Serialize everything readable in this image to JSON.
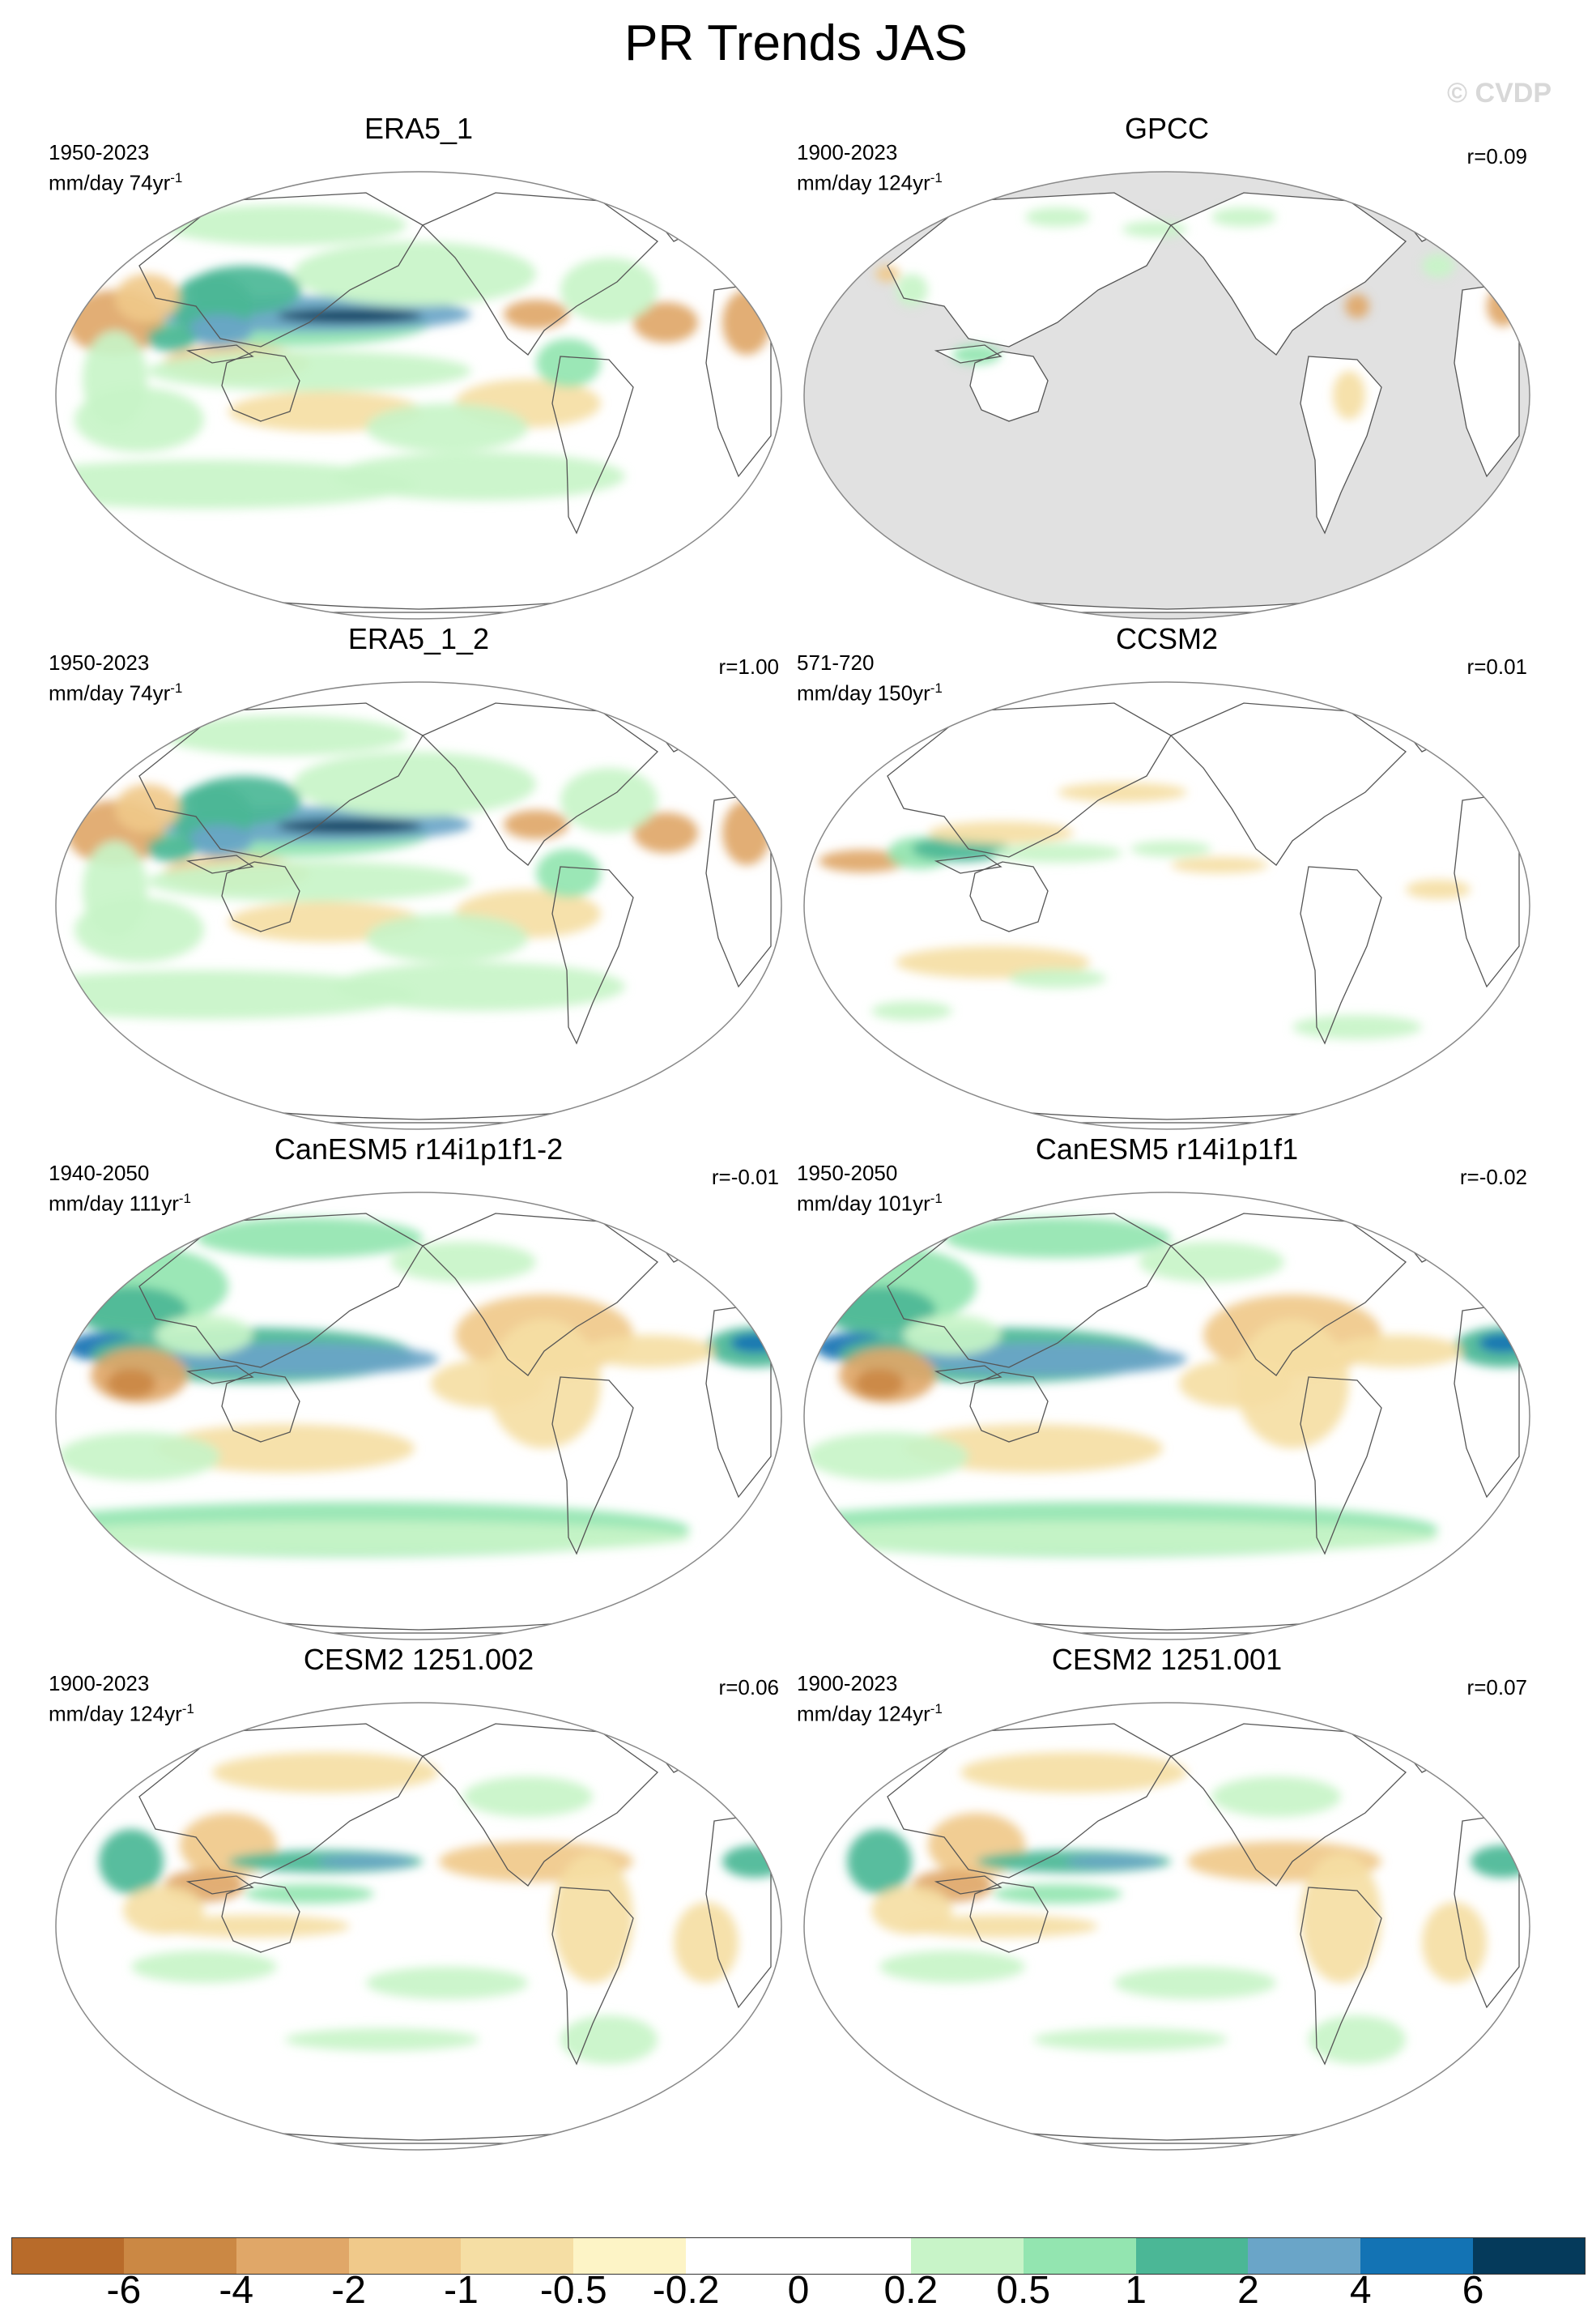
{
  "title": "PR Trends JAS",
  "watermark": "© CVDP",
  "panels": [
    {
      "title": "ERA5_1",
      "period": "1950-2023",
      "units": "mm/day 74yr",
      "units_exp": "-1",
      "r": "",
      "masked": false,
      "pattern": "era5"
    },
    {
      "title": "GPCC",
      "period": "1900-2023",
      "units": "mm/day 124yr",
      "units_exp": "-1",
      "r": "r=0.09",
      "masked": true,
      "pattern": "gpcc"
    },
    {
      "title": "ERA5_1_2",
      "period": "1950-2023",
      "units": "mm/day 74yr",
      "units_exp": "-1",
      "r": "r=1.00",
      "masked": false,
      "pattern": "era5"
    },
    {
      "title": "CCSM2",
      "period": "571-720",
      "units": "mm/day 150yr",
      "units_exp": "-1",
      "r": "r=0.01",
      "masked": false,
      "pattern": "ccsm"
    },
    {
      "title": "CanESM5 r14i1p1f1-2",
      "period": "1940-2050",
      "units": "mm/day 111yr",
      "units_exp": "-1",
      "r": "r=-0.01",
      "masked": false,
      "pattern": "canesm"
    },
    {
      "title": "CanESM5 r14i1p1f1",
      "period": "1950-2050",
      "units": "mm/day 101yr",
      "units_exp": "-1",
      "r": "r=-0.02",
      "masked": false,
      "pattern": "canesm"
    },
    {
      "title": "CESM2 1251.002",
      "period": "1900-2023",
      "units": "mm/day 124yr",
      "units_exp": "-1",
      "r": "r=0.06",
      "masked": false,
      "pattern": "cesm"
    },
    {
      "title": "CESM2 1251.001",
      "period": "1900-2023",
      "units": "mm/day 124yr",
      "units_exp": "-1",
      "r": "r=0.07",
      "masked": false,
      "pattern": "cesm"
    }
  ],
  "colorbar": {
    "levels": [
      "-6",
      "-4",
      "-2",
      "-1",
      "-0.5",
      "-0.2",
      "0",
      "0.2",
      "0.5",
      "1",
      "2",
      "4",
      "6"
    ],
    "colors": [
      "#b86b2a",
      "#cb8844",
      "#e0a768",
      "#f0c98a",
      "#f5dea4",
      "#fdf4c6",
      "#ffffff",
      "#ffffff",
      "#c8f4c8",
      "#93e5b0",
      "#4bb796",
      "#6aa5c8",
      "#1373b4",
      "#053a5b"
    ]
  },
  "chart_data": [
    {
      "type": "heatmap",
      "title": "ERA5_1",
      "period": "1950-2023",
      "units": "mm/day 74yr-1",
      "r": null
    },
    {
      "type": "heatmap",
      "title": "GPCC",
      "period": "1900-2023",
      "units": "mm/day 124yr-1",
      "r": 0.09
    },
    {
      "type": "heatmap",
      "title": "ERA5_1_2",
      "period": "1950-2023",
      "units": "mm/day 74yr-1",
      "r": 1.0
    },
    {
      "type": "heatmap",
      "title": "CCSM2",
      "period": "571-720",
      "units": "mm/day 150yr-1",
      "r": 0.01
    },
    {
      "type": "heatmap",
      "title": "CanESM5 r14i1p1f1-2",
      "period": "1940-2050",
      "units": "mm/day 111yr-1",
      "r": -0.01
    },
    {
      "type": "heatmap",
      "title": "CanESM5 r14i1p1f1",
      "period": "1950-2050",
      "units": "mm/day 101yr-1",
      "r": -0.02
    },
    {
      "type": "heatmap",
      "title": "CESM2 1251.002",
      "period": "1900-2023",
      "units": "mm/day 124yr-1",
      "r": 0.06
    },
    {
      "type": "heatmap",
      "title": "CESM2 1251.001",
      "period": "1900-2023",
      "units": "mm/day 124yr-1",
      "r": 0.07
    }
  ]
}
